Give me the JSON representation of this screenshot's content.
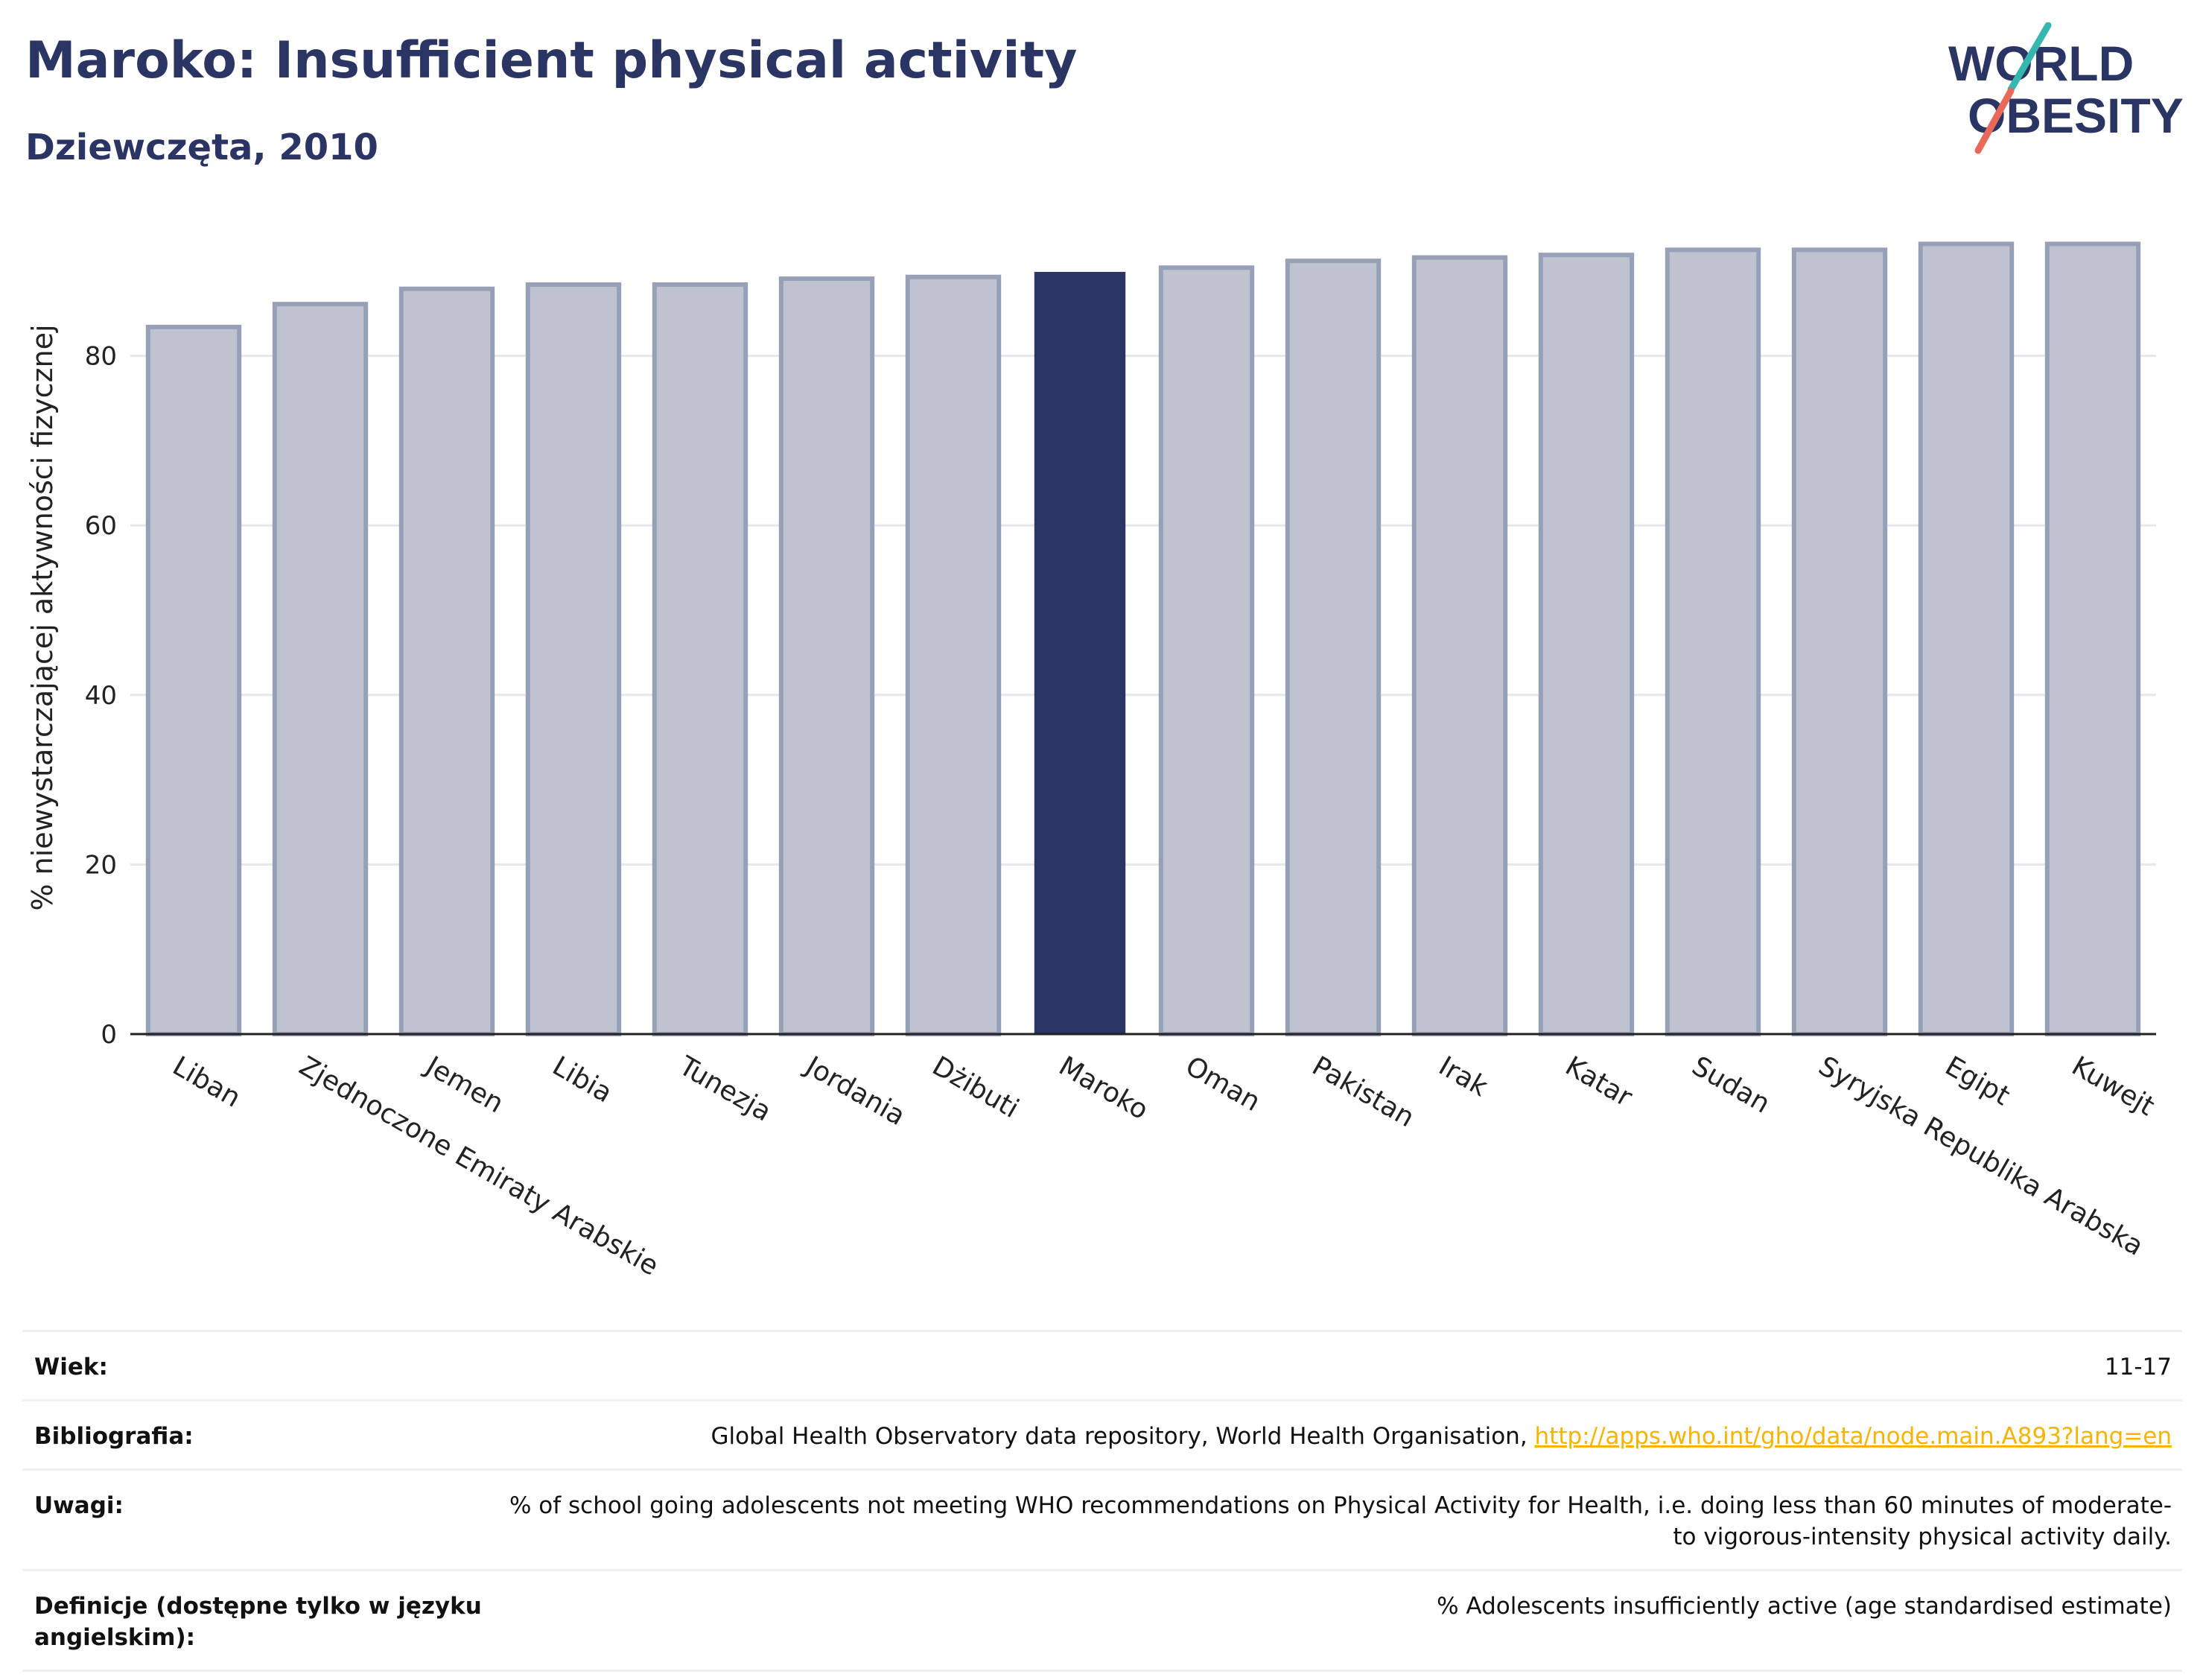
{
  "header": {
    "title": "Maroko: Insufficient physical activity",
    "subtitle": "Dziewczęta, 2010"
  },
  "logo": {
    "line1": "WORLD",
    "line2": "OBESITY",
    "colors": {
      "text": "#2b3563",
      "accent1": "#35b7b0",
      "accent2": "#e8685a"
    }
  },
  "chart_data": {
    "type": "bar",
    "ylabel": "% niewystarczającej aktywności fizycznej",
    "xlabel": "",
    "ylim": [
      0,
      100
    ],
    "yticks": [
      0,
      20,
      40,
      60,
      80
    ],
    "grid": true,
    "highlight": "Maroko",
    "colors": {
      "bar": "#bfc3d0",
      "bar_edge": "#98a0b8",
      "highlight": "#2b3563"
    },
    "categories": [
      "Liban",
      "Zjednoczone Emiraty Arabskie",
      "Jemen",
      "Libia",
      "Tunezja",
      "Jordania",
      "Dżibuti",
      "Maroko",
      "Oman",
      "Pakistan",
      "Irak",
      "Katar",
      "Sudan",
      "Syryjska Republika Arabska",
      "Egipt",
      "Kuwejt"
    ],
    "values": [
      83.4,
      86.1,
      87.9,
      88.4,
      88.4,
      89.1,
      89.3,
      89.9,
      90.4,
      91.2,
      91.6,
      91.9,
      92.5,
      92.5,
      93.2,
      93.2
    ]
  },
  "meta": {
    "rows": [
      {
        "key": "Wiek:",
        "value": "11-17"
      },
      {
        "key": "Bibliografia:",
        "value": "Global Health Observatory data repository, World Health Organisation, ",
        "link": "http://apps.who.int/gho/data/node.main.A893?lang=en"
      },
      {
        "key": "Uwagi:",
        "value": "% of school going adolescents not meeting WHO recommendations on Physical Activity for Health, i.e. doing less than 60 minutes of moderate- to vigorous-intensity physical activity daily."
      },
      {
        "key": "Definicje (dostępne tylko w języku angielskim):",
        "value": "% Adolescents insufficiently active (age standardised estimate)"
      }
    ]
  }
}
